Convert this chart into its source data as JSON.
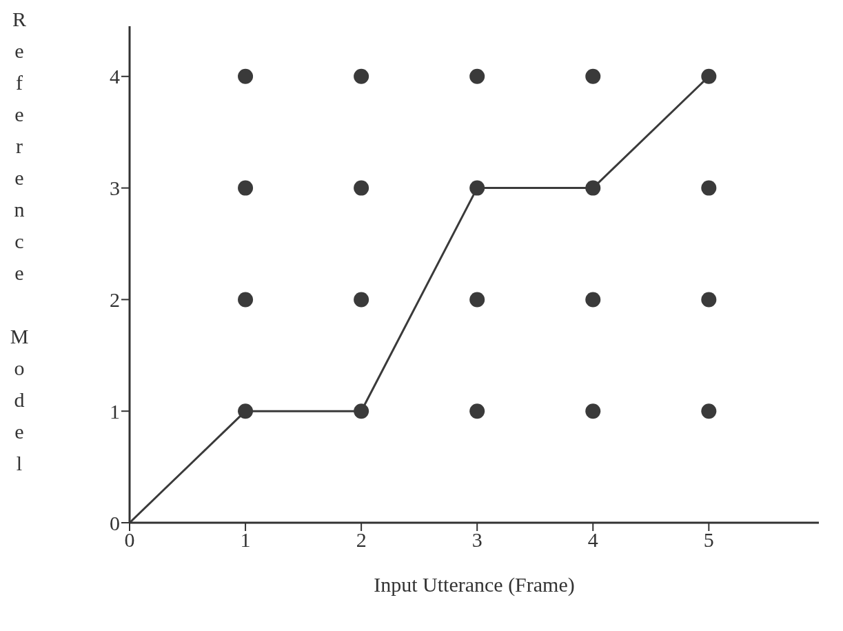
{
  "chart_data": {
    "type": "scatter",
    "xlabel": "Input Utterance (Frame)",
    "ylabel": "Reference Model",
    "xlim": [
      0,
      5.95
    ],
    "ylim": [
      0,
      4.45
    ],
    "xticks": [
      0,
      1,
      2,
      3,
      4,
      5
    ],
    "yticks": [
      0,
      1,
      2,
      3,
      4
    ],
    "grid": false,
    "series": [
      {
        "color": "#3a3a3a",
        "marker": "circle",
        "x": [
          1,
          2,
          3,
          4,
          5,
          1,
          2,
          3,
          4,
          5,
          1,
          2,
          3,
          4,
          5,
          1,
          2,
          3,
          4,
          5
        ],
        "values": [
          4,
          4,
          4,
          4,
          4,
          3,
          3,
          3,
          3,
          3,
          2,
          2,
          2,
          2,
          2,
          1,
          1,
          1,
          1,
          1
        ]
      },
      {
        "type": "line",
        "color": "#3a3a3a",
        "marker": "none",
        "line_style": "solid",
        "x": [
          0,
          1,
          2,
          3,
          4,
          5
        ],
        "values": [
          0,
          1,
          1,
          3,
          3,
          4
        ]
      }
    ]
  }
}
